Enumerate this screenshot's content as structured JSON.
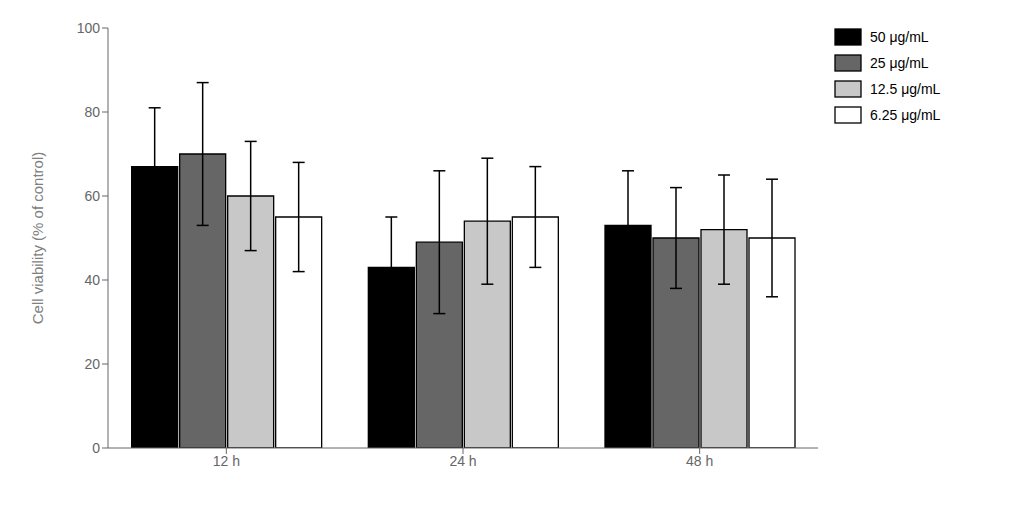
{
  "chart_data": {
    "type": "bar",
    "ylabel": "Cell viability (% of control)",
    "categories": [
      "12 h",
      "24 h",
      "48 h"
    ],
    "series": [
      {
        "name": "50 μg/mL",
        "color": "#000000",
        "values": [
          67,
          43,
          53
        ],
        "errors": [
          14,
          12,
          13
        ]
      },
      {
        "name": "25 μg/mL",
        "color": "#666666",
        "values": [
          70,
          49,
          50
        ],
        "errors": [
          17,
          17,
          12
        ]
      },
      {
        "name": "12.5 μg/mL",
        "color": "#c8c8c8",
        "values": [
          60,
          54,
          52
        ],
        "errors": [
          13,
          15,
          13
        ]
      },
      {
        "name": "6.25 μg/mL",
        "color": "#ffffff",
        "values": [
          55,
          55,
          50
        ],
        "errors": [
          13,
          12,
          14
        ]
      }
    ],
    "ylim": [
      0,
      100
    ],
    "yticks": [
      0,
      20,
      40,
      60,
      80,
      100
    ],
    "grid": false,
    "legend": "upper right"
  }
}
